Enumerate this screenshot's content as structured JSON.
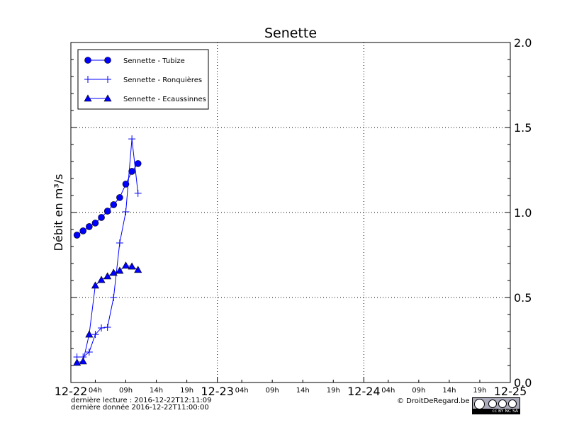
{
  "chart_data": {
    "type": "line",
    "title": "Senette",
    "ylabel": "Débit en m³/s",
    "xlabel": "",
    "ylim": [
      0,
      2.0
    ],
    "xlim": [
      "2016-12-22T00:00",
      "2016-12-25T00:00"
    ],
    "y_ticks": [
      "0.0",
      "0.5",
      "1.0",
      "1.5",
      "2.0"
    ],
    "y_axis_side": "right",
    "x_major_ticks": [
      "12-22",
      "12-23",
      "12-24",
      "12-25"
    ],
    "x_minor_ticks": [
      "04h",
      "09h",
      "14h",
      "19h"
    ],
    "grid": true,
    "legend_position": "top-left",
    "x": [
      "2016-12-22T01:00",
      "2016-12-22T02:00",
      "2016-12-22T03:00",
      "2016-12-22T04:00",
      "2016-12-22T05:00",
      "2016-12-22T06:00",
      "2016-12-22T07:00",
      "2016-12-22T08:00",
      "2016-12-22T09:00",
      "2016-12-22T10:00",
      "2016-12-22T11:00"
    ],
    "series": [
      {
        "name": "Sennette - Tubize",
        "marker": "circle",
        "color": "#0000ff",
        "values": [
          0.867,
          0.892,
          0.917,
          0.938,
          0.971,
          1.008,
          1.046,
          1.088,
          1.167,
          1.242,
          1.288
        ]
      },
      {
        "name": "Sennette - Ronquières",
        "marker": "plus",
        "color": "#0000ff",
        "values": [
          0.15,
          0.15,
          0.179,
          0.283,
          0.321,
          0.325,
          0.5,
          0.821,
          1.004,
          1.433,
          1.113
        ]
      },
      {
        "name": "Sennette - Ecaussinnes",
        "marker": "triangle",
        "color": "#0000ff",
        "values": [
          0.117,
          0.125,
          0.283,
          0.571,
          0.604,
          0.625,
          0.646,
          0.658,
          0.688,
          0.683,
          0.663
        ]
      }
    ]
  },
  "footer": {
    "last_read": "dernière lecture : 2016-12-22T12:11:09",
    "last_data": "dernière donnée  2016-12-22T11:00:00",
    "copyright": "© DroitDeRegard.be",
    "license_badge": "cc BY NC SA"
  }
}
